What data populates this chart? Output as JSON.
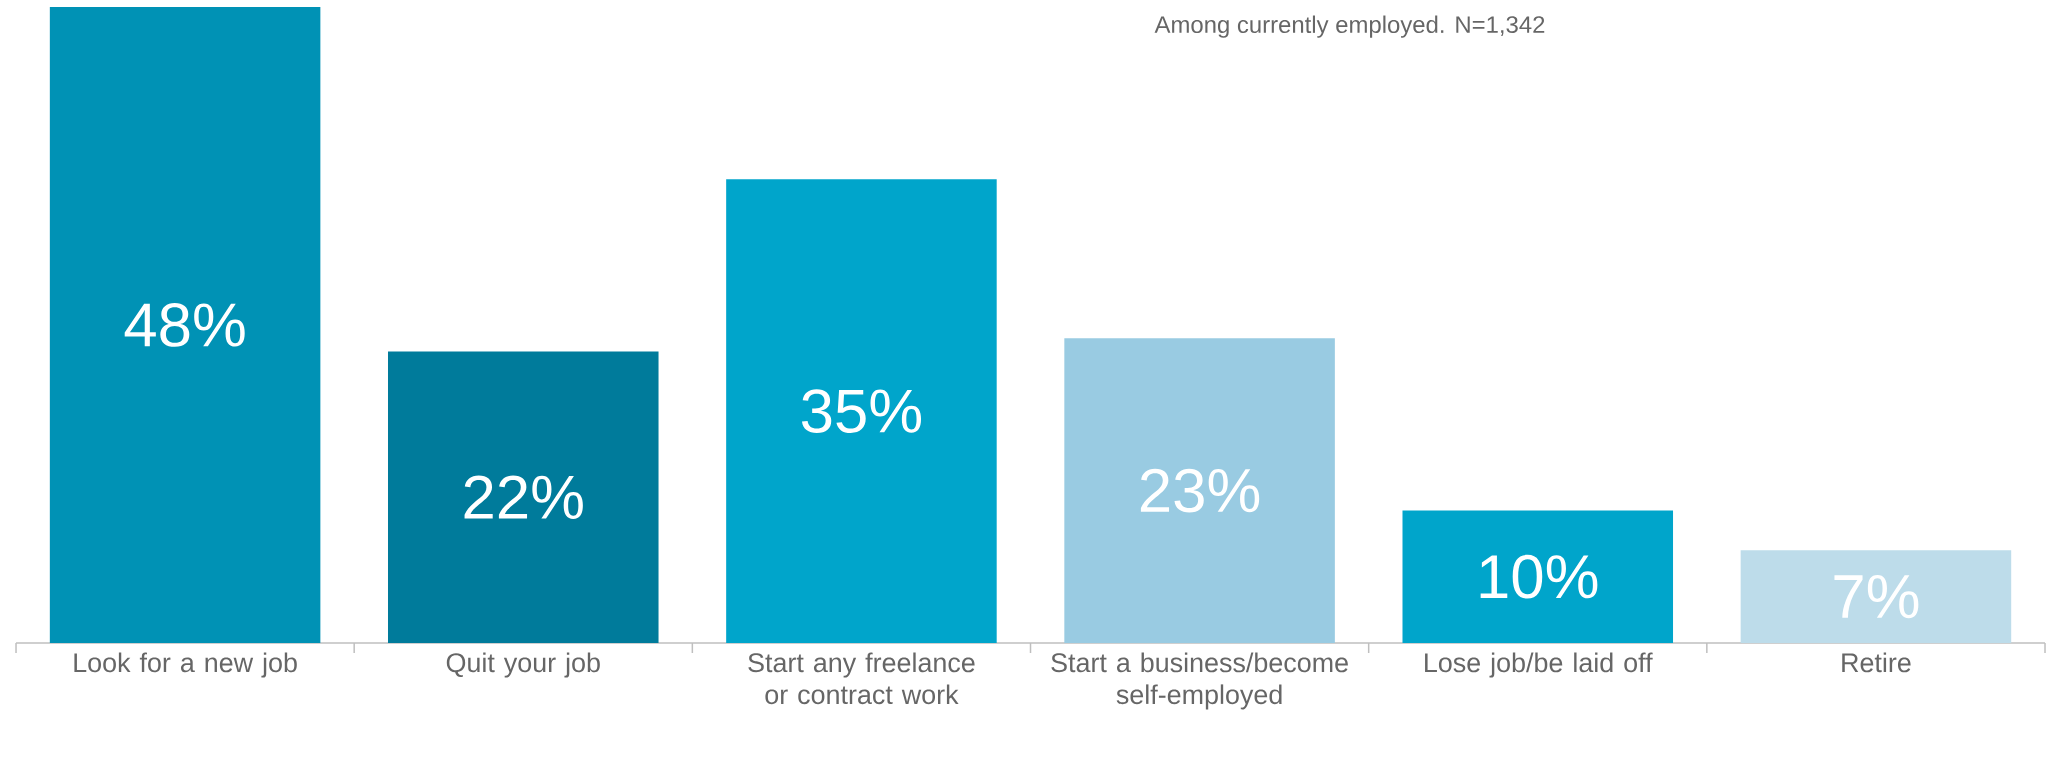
{
  "chart_data": {
    "type": "bar",
    "categories": [
      "Look for a new job",
      "Quit your job",
      "Start any freelance or contract work",
      "Start a business/become self-employed",
      "Lose job/be laid off",
      "Retire"
    ],
    "values": [
      48,
      22,
      35,
      23,
      10,
      7
    ],
    "colors": [
      "#0092b5",
      "#007b9b",
      "#00a5cb",
      "#99cbe2",
      "#00a5cb",
      "#bddcea"
    ],
    "value_labels": [
      "48%",
      "22%",
      "35%",
      "23%",
      "10%",
      "7%"
    ],
    "annotations": [
      "Among currently employed. N=1,342"
    ],
    "tick_labels": "x"
  }
}
